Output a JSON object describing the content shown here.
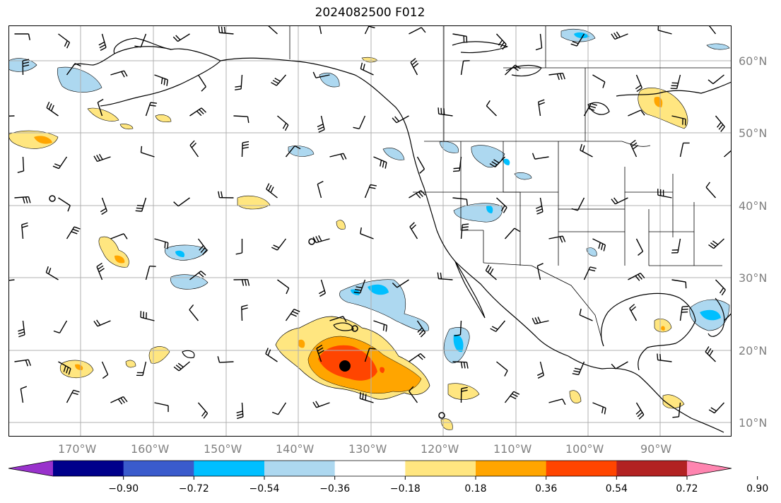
{
  "title": "2024082500 F012",
  "lon_labels": [
    "170°W",
    "160°W",
    "150°W",
    "140°W",
    "130°W",
    "120°W",
    "110°W",
    "100°W",
    "90°W"
  ],
  "lat_labels": [
    "60°N",
    "50°N",
    "40°N",
    "30°N",
    "20°N",
    "10°N"
  ],
  "colorbar": {
    "tick_labels": [
      "−0.90",
      "−0.72",
      "−0.54",
      "−0.36",
      "−0.18",
      "0.18",
      "0.36",
      "0.54",
      "0.72",
      "0.90"
    ],
    "colors": [
      "#9932cc",
      "#00008b",
      "#3a5bcc",
      "#00bfff",
      "#add8f0",
      "#ffffff",
      "#ffe680",
      "#ffa500",
      "#ff4500",
      "#b22222",
      "#ff85b0"
    ]
  },
  "colors": {
    "grid": "#b0b0b0",
    "coast": "#000000",
    "axis_label": "#808080"
  }
}
